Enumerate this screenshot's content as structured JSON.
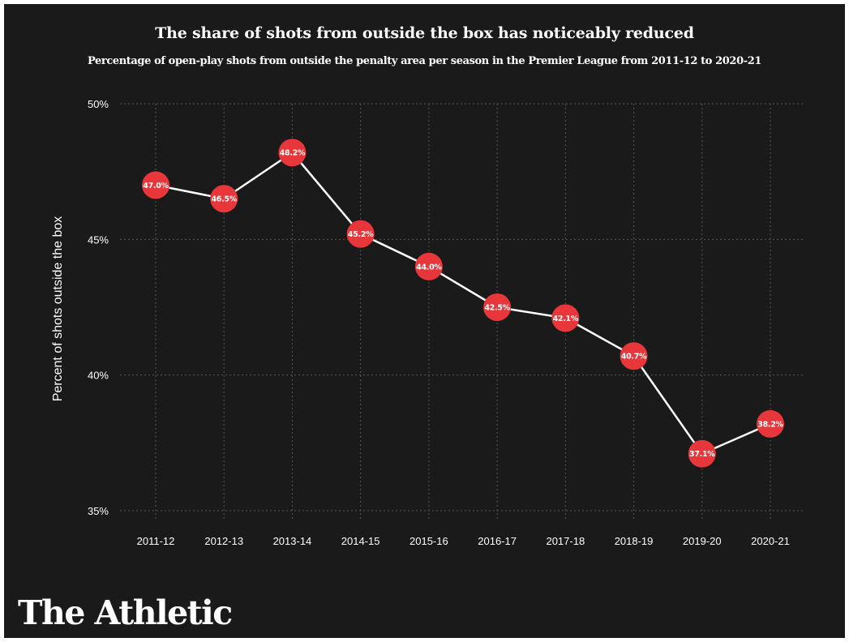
{
  "chart_data": {
    "type": "line",
    "title": "The share of shots from outside the box has noticeably reduced",
    "subtitle": "Percentage of open-play shots from outside the penalty area per season in the Premier League from 2011-12 to 2020-21",
    "xlabel": "",
    "ylabel": "Percent of shots outside the box",
    "categories": [
      "2011-12",
      "2012-13",
      "2013-14",
      "2014-15",
      "2015-16",
      "2016-17",
      "2017-18",
      "2018-19",
      "2019-20",
      "2020-21"
    ],
    "values": [
      47.0,
      46.5,
      48.2,
      45.2,
      44.0,
      42.5,
      42.1,
      40.7,
      37.1,
      38.2
    ],
    "data_labels": [
      "47.0%",
      "46.5%",
      "48.2%",
      "45.2%",
      "44.0%",
      "42.5%",
      "42.1%",
      "40.7%",
      "37.1%",
      "38.2%"
    ],
    "ylim": [
      35,
      50
    ],
    "yticks": [
      35,
      40,
      45,
      50
    ],
    "ytick_labels": [
      "35%",
      "40%",
      "45%",
      "50%"
    ],
    "grid": true,
    "legend": "none"
  },
  "colors": {
    "background": "#1a1a1a",
    "marker": "#e8373a",
    "line": "#ffffff",
    "text": "#ffffff",
    "grid": "#555555"
  },
  "brand": {
    "logo_text": "The Athletic"
  }
}
